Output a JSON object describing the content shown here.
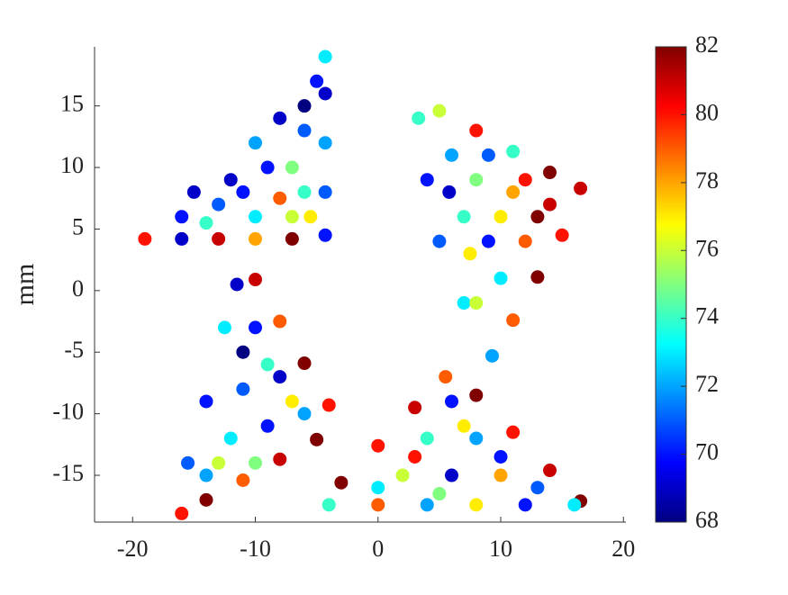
{
  "chart_data": {
    "type": "scatter",
    "ylabel": "mm",
    "colormap": "jet",
    "x": [
      -19,
      -16,
      -13,
      -10,
      -7,
      -4.3,
      -4.3,
      -4.3,
      -4.3,
      -4.3,
      -16,
      -13,
      -10,
      -7,
      -6,
      -9,
      -12,
      -6,
      -8,
      -5,
      -10,
      -7,
      -14,
      -5.5,
      -11,
      -8,
      -6,
      -15,
      5,
      8,
      11,
      14,
      16.5,
      15,
      13,
      11,
      9.3,
      7,
      5,
      4,
      3.3,
      6,
      8,
      11,
      14,
      12,
      9,
      7,
      10,
      8,
      7.5,
      5.8,
      9,
      12,
      13,
      10,
      -10,
      -8,
      -6,
      -4,
      -5,
      -8,
      -11,
      -14,
      -16,
      -15.5,
      -14,
      -12.5,
      -11.5,
      -10,
      -9,
      -11,
      -7,
      -12,
      -9,
      -13,
      -6,
      -10,
      -8,
      -11,
      -14,
      -3,
      0,
      3,
      5.5,
      8,
      11,
      14,
      16.5,
      -4,
      0,
      4,
      8,
      12,
      16,
      6,
      4,
      8,
      2,
      6,
      10,
      13,
      0,
      7,
      10,
      3,
      5
    ],
    "y": [
      4.2,
      4.2,
      4.2,
      4.2,
      4.2,
      4.5,
      8,
      12,
      16,
      19,
      6,
      7,
      6,
      6,
      8,
      10,
      9,
      13,
      14,
      17,
      12,
      10,
      5.5,
      6,
      8,
      7.5,
      15,
      8,
      14.6,
      13,
      11.3,
      9.6,
      8.3,
      4.5,
      1.1,
      -2.4,
      -5.3,
      -1,
      4,
      9,
      14,
      11,
      9,
      8,
      7,
      4,
      4,
      6,
      1,
      -1,
      3,
      8,
      11,
      9,
      6,
      6,
      0.9,
      -2.5,
      -5.9,
      -9.3,
      -12.1,
      -13.7,
      -15.4,
      -17,
      -18.1,
      -14,
      -9,
      -3,
      0.5,
      -3,
      -6,
      -8,
      -9,
      -12,
      -11,
      -14,
      -10,
      -14,
      -7,
      -5,
      -15,
      -15.6,
      -12.6,
      -9.5,
      -7,
      -8.5,
      -11.5,
      -14.6,
      -17.1,
      -17.4,
      -17.4,
      -17.4,
      -17.4,
      -17.4,
      -17.4,
      -9,
      -12,
      -12,
      -15,
      -15,
      -15,
      -16,
      -16,
      -11,
      -13.5,
      -13.5,
      -16.5
    ],
    "c": [
      80,
      69,
      81,
      78,
      82,
      70,
      71,
      72,
      69,
      73,
      70,
      71,
      73,
      76,
      74,
      70,
      69,
      71,
      69,
      70,
      72,
      75,
      74,
      77,
      70,
      79,
      68,
      69,
      76,
      80,
      74,
      82,
      81,
      80,
      82,
      79,
      72,
      73,
      71,
      70,
      74,
      72,
      75,
      78,
      81,
      79,
      70,
      74,
      73,
      76,
      77,
      69,
      71,
      80,
      82,
      77,
      81,
      79,
      82,
      80,
      82,
      81,
      79,
      82,
      80,
      71,
      70,
      73,
      69,
      70,
      74,
      71,
      77,
      73,
      70,
      76,
      72,
      75,
      69,
      68,
      72,
      82,
      80,
      81,
      79,
      82,
      80,
      81,
      82,
      74,
      79,
      72,
      77,
      70,
      73,
      70,
      74,
      72,
      76,
      69,
      78,
      71,
      73,
      77,
      70,
      80,
      75
    ],
    "xlim": [
      -23.1,
      20.2
    ],
    "ylim": [
      -18.8,
      19.8
    ],
    "xticks": [
      -20,
      -10,
      0,
      10,
      20
    ],
    "yticks": [
      -15,
      -10,
      -5,
      0,
      5,
      10,
      15
    ],
    "clim": [
      68,
      82
    ],
    "cticks": [
      68,
      70,
      72,
      74,
      76,
      78,
      80,
      82
    ]
  }
}
